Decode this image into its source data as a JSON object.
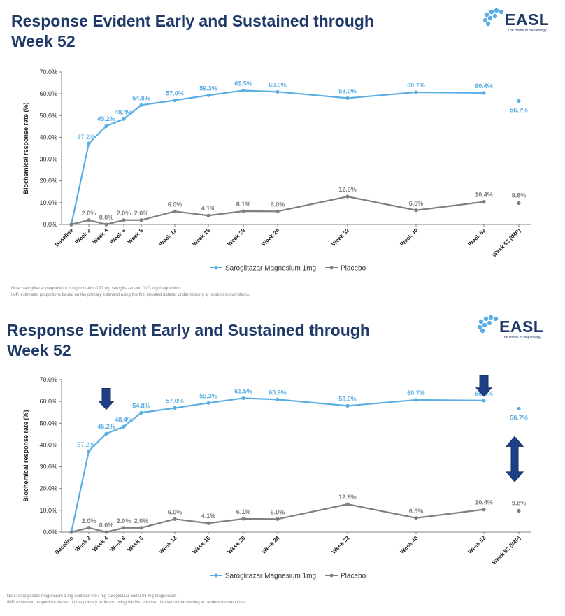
{
  "slide": {
    "title_line1": "Response Evident Early and Sustained through",
    "title_line2": "Week 52",
    "logo_text": "EASL",
    "logo_tagline": "The Home of Hepatology",
    "note_line1": "Note: saroglitazar magnesium 1 mg contains 0.97 mg saroglitazar and 0.03 mg magnesium",
    "note_line2": "IMP, estimated proportions based on the primary estimand using the first imputed dataset under missing at random assumptions."
  },
  "colors": {
    "title": "#1f3a68",
    "saroglitazar": "#5aaee3",
    "placebo": "#7f7f7f",
    "arrow": "#1f3f87",
    "axis": "#808080"
  },
  "chart_data": [
    {
      "type": "line",
      "title": "",
      "xlabel": "",
      "ylabel": "Biochemical response rate (%)",
      "ylim": [
        0,
        70
      ],
      "yticks": [
        "0.0%",
        "10.0%",
        "20.0%",
        "30.0%",
        "40.0%",
        "50.0%",
        "60.0%",
        "70.0%"
      ],
      "categories": [
        "Baseline",
        "Week 2",
        "Week 4",
        "Week 6",
        "Week 8",
        "Week 12",
        "Week 16",
        "Week 20",
        "Week 24",
        "Week 32",
        "Week 40",
        "Week 52",
        "Week 52 (IMP)"
      ],
      "legend_position": "bottom",
      "series": [
        {
          "name": "Saroglitazar Magnesium 1mg",
          "values": [
            0,
            37.2,
            45.2,
            48.4,
            54.8,
            57.0,
            59.3,
            61.5,
            60.9,
            58.0,
            60.7,
            60.4,
            56.7
          ],
          "labels": [
            "",
            "37.2%",
            "45.2%",
            "48.4%",
            "54.8%",
            "57.0%",
            "59.3%",
            "61.5%",
            "60.9%",
            "58.0%",
            "60.7%",
            "60.4%",
            "56.7%"
          ]
        },
        {
          "name": "Placebo",
          "values": [
            0,
            2.0,
            0.0,
            2.0,
            2.0,
            6.0,
            4.1,
            6.1,
            6.0,
            12.8,
            6.5,
            10.4,
            9.8
          ],
          "labels": [
            "",
            "2.0%",
            "0.0%",
            "2.0%",
            "2.0%",
            "6.0%",
            "4.1%",
            "6.1%",
            "6.0%",
            "12.8%",
            "6.5%",
            "10.4%",
            "9.8%"
          ]
        }
      ],
      "annotations": []
    },
    {
      "type": "line",
      "title": "",
      "xlabel": "",
      "ylabel": "Biochemical response rate (%)",
      "ylim": [
        0,
        70
      ],
      "yticks": [
        "0.0%",
        "10.0%",
        "20.0%",
        "30.0%",
        "40.0%",
        "50.0%",
        "60.0%",
        "70.0%"
      ],
      "categories": [
        "Baseline",
        "Week 2",
        "Week 4",
        "Week 6",
        "Week 8",
        "Week 12",
        "Week 16",
        "Week 20",
        "Week 24",
        "Week 32",
        "Week 40",
        "Week 52",
        "Week 52 (IMP)"
      ],
      "legend_position": "bottom",
      "series": [
        {
          "name": "Saroglitazar Magnesium 1mg",
          "values": [
            0,
            37.2,
            45.2,
            48.4,
            54.8,
            57.0,
            59.3,
            61.5,
            60.9,
            58.0,
            60.7,
            60.4,
            56.7
          ],
          "labels": [
            "",
            "37.2%",
            "45.2%",
            "48.4%",
            "54.8%",
            "57.0%",
            "59.3%",
            "61.5%",
            "60.9%",
            "58.0%",
            "60.7%",
            "60.4%",
            "56.7%"
          ]
        },
        {
          "name": "Placebo",
          "values": [
            0,
            2.0,
            0.0,
            2.0,
            2.0,
            6.0,
            4.1,
            6.1,
            6.0,
            12.8,
            6.5,
            10.4,
            9.8
          ],
          "labels": [
            "",
            "2.0%",
            "0.0%",
            "2.0%",
            "2.0%",
            "6.0%",
            "4.1%",
            "6.1%",
            "6.0%",
            "12.8%",
            "6.5%",
            "10.4%",
            "9.8%"
          ]
        }
      ],
      "annotations": [
        {
          "kind": "down-arrow",
          "category": "Week 4",
          "value": 66
        },
        {
          "kind": "down-arrow",
          "category": "Week 52",
          "value": 72
        },
        {
          "kind": "double-arrow",
          "category": "Week 52 (IMP)",
          "from": 40,
          "to": 27
        }
      ]
    }
  ]
}
